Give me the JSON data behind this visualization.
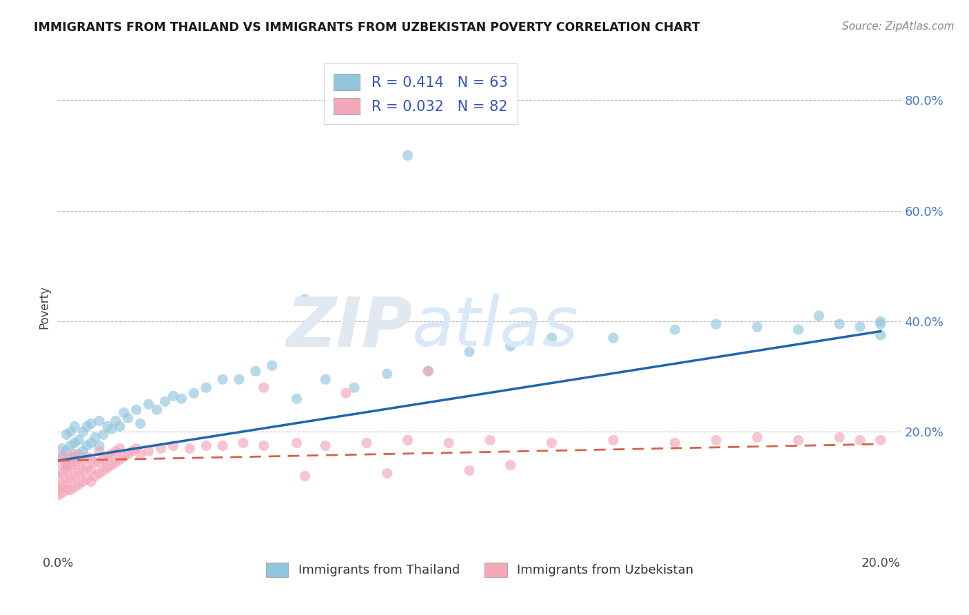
{
  "title": "IMMIGRANTS FROM THAILAND VS IMMIGRANTS FROM UZBEKISTAN POVERTY CORRELATION CHART",
  "source": "Source: ZipAtlas.com",
  "ylabel": "Poverty",
  "xlim": [
    0.0,
    0.205
  ],
  "ylim": [
    -0.02,
    0.87
  ],
  "yticks": [
    0.2,
    0.4,
    0.6,
    0.8
  ],
  "ytick_labels": [
    "20.0%",
    "40.0%",
    "60.0%",
    "80.0%"
  ],
  "xticks": [
    0.0,
    0.2
  ],
  "xtick_labels": [
    "0.0%",
    "20.0%"
  ],
  "thailand_R": 0.414,
  "thailand_N": 63,
  "uzbekistan_R": 0.032,
  "uzbekistan_N": 82,
  "thailand_color": "#92c5de",
  "uzbekistan_color": "#f4a7b9",
  "thailand_line_color": "#2166ac",
  "uzbekistan_line_color": "#d6604d",
  "background_color": "#ffffff",
  "grid_color": "#bbbbbb",
  "thailand_line_y0": 0.148,
  "thailand_line_y1": 0.382,
  "uzbekistan_line_y0": 0.148,
  "uzbekistan_line_y1": 0.178,
  "thai_x": [
    0.001,
    0.001,
    0.002,
    0.002,
    0.002,
    0.003,
    0.003,
    0.003,
    0.004,
    0.004,
    0.004,
    0.005,
    0.005,
    0.006,
    0.006,
    0.007,
    0.007,
    0.008,
    0.008,
    0.009,
    0.01,
    0.01,
    0.011,
    0.012,
    0.013,
    0.014,
    0.015,
    0.016,
    0.017,
    0.019,
    0.02,
    0.022,
    0.024,
    0.026,
    0.028,
    0.03,
    0.033,
    0.036,
    0.04,
    0.044,
    0.048,
    0.052,
    0.058,
    0.065,
    0.072,
    0.08,
    0.09,
    0.1,
    0.11,
    0.12,
    0.135,
    0.15,
    0.16,
    0.17,
    0.18,
    0.185,
    0.19,
    0.195,
    0.2,
    0.2,
    0.2,
    0.085,
    0.06
  ],
  "thai_y": [
    0.155,
    0.17,
    0.14,
    0.165,
    0.195,
    0.15,
    0.175,
    0.2,
    0.155,
    0.18,
    0.21,
    0.16,
    0.185,
    0.165,
    0.2,
    0.175,
    0.21,
    0.18,
    0.215,
    0.19,
    0.175,
    0.22,
    0.195,
    0.21,
    0.205,
    0.22,
    0.21,
    0.235,
    0.225,
    0.24,
    0.215,
    0.25,
    0.24,
    0.255,
    0.265,
    0.26,
    0.27,
    0.28,
    0.295,
    0.295,
    0.31,
    0.32,
    0.26,
    0.295,
    0.28,
    0.305,
    0.31,
    0.345,
    0.355,
    0.37,
    0.37,
    0.385,
    0.395,
    0.39,
    0.385,
    0.41,
    0.395,
    0.39,
    0.375,
    0.4,
    0.395,
    0.7,
    0.44
  ],
  "uzb_x": [
    0.0,
    0.0,
    0.0,
    0.001,
    0.001,
    0.001,
    0.001,
    0.001,
    0.002,
    0.002,
    0.002,
    0.002,
    0.003,
    0.003,
    0.003,
    0.003,
    0.004,
    0.004,
    0.004,
    0.004,
    0.005,
    0.005,
    0.005,
    0.006,
    0.006,
    0.006,
    0.007,
    0.007,
    0.007,
    0.008,
    0.008,
    0.008,
    0.009,
    0.009,
    0.01,
    0.01,
    0.01,
    0.011,
    0.011,
    0.012,
    0.012,
    0.013,
    0.013,
    0.014,
    0.014,
    0.015,
    0.015,
    0.016,
    0.017,
    0.018,
    0.019,
    0.02,
    0.022,
    0.025,
    0.028,
    0.032,
    0.036,
    0.04,
    0.045,
    0.05,
    0.058,
    0.065,
    0.075,
    0.085,
    0.095,
    0.105,
    0.12,
    0.135,
    0.15,
    0.16,
    0.17,
    0.18,
    0.19,
    0.195,
    0.2,
    0.05,
    0.06,
    0.07,
    0.08,
    0.09,
    0.1,
    0.11
  ],
  "uzb_y": [
    0.1,
    0.12,
    0.085,
    0.09,
    0.105,
    0.125,
    0.14,
    0.155,
    0.095,
    0.11,
    0.13,
    0.145,
    0.095,
    0.115,
    0.135,
    0.155,
    0.1,
    0.12,
    0.14,
    0.16,
    0.105,
    0.125,
    0.145,
    0.11,
    0.13,
    0.15,
    0.115,
    0.135,
    0.155,
    0.11,
    0.13,
    0.15,
    0.12,
    0.145,
    0.125,
    0.145,
    0.165,
    0.13,
    0.15,
    0.135,
    0.155,
    0.14,
    0.16,
    0.145,
    0.165,
    0.15,
    0.17,
    0.155,
    0.16,
    0.165,
    0.17,
    0.16,
    0.165,
    0.17,
    0.175,
    0.17,
    0.175,
    0.175,
    0.18,
    0.175,
    0.18,
    0.175,
    0.18,
    0.185,
    0.18,
    0.185,
    0.18,
    0.185,
    0.18,
    0.185,
    0.19,
    0.185,
    0.19,
    0.185,
    0.185,
    0.28,
    0.12,
    0.27,
    0.125,
    0.31,
    0.13,
    0.14
  ]
}
